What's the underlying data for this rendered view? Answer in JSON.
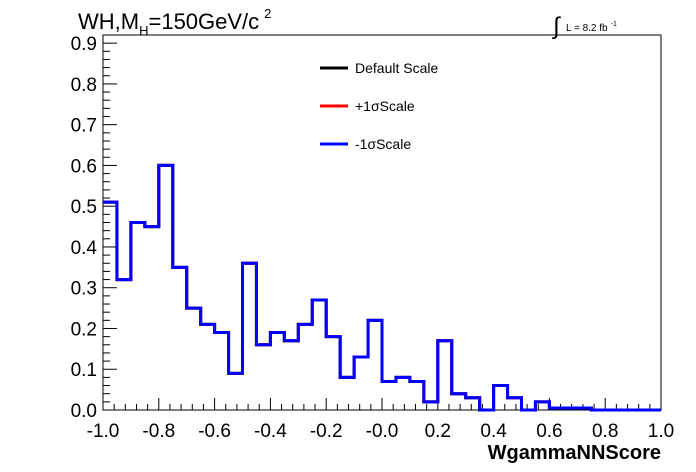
{
  "chart_data": {
    "type": "line",
    "title": {
      "main": "WH,M",
      "subscript": "H",
      "rest": "=150GeV/c",
      "superscript": "2"
    },
    "lumi": {
      "integral": "∫",
      "text": "L = 8.2 fb",
      "superscript": "-1"
    },
    "xlabel": "WgammaNNScore",
    "ylabel": "",
    "xlim": [
      -1.0,
      1.0
    ],
    "ylim": [
      0.0,
      0.92
    ],
    "x_ticks": [
      {
        "value": -1.0,
        "label": "-1.0"
      },
      {
        "value": -0.8,
        "label": "-0.8"
      },
      {
        "value": -0.6,
        "label": "-0.6"
      },
      {
        "value": -0.4,
        "label": "-0.4"
      },
      {
        "value": -0.2,
        "label": "-0.2"
      },
      {
        "value": 0.0,
        "label": "-0.0"
      },
      {
        "value": 0.2,
        "label": "0.2"
      },
      {
        "value": 0.4,
        "label": "0.4"
      },
      {
        "value": 0.6,
        "label": "0.6"
      },
      {
        "value": 0.8,
        "label": "0.8"
      },
      {
        "value": 1.0,
        "label": "1.0"
      }
    ],
    "y_ticks": [
      {
        "value": 0.0,
        "label": "0.0"
      },
      {
        "value": 0.1,
        "label": "0.1"
      },
      {
        "value": 0.2,
        "label": "0.2"
      },
      {
        "value": 0.3,
        "label": "0.3"
      },
      {
        "value": 0.4,
        "label": "0.4"
      },
      {
        "value": 0.5,
        "label": "0.5"
      },
      {
        "value": 0.6,
        "label": "0.6"
      },
      {
        "value": 0.7,
        "label": "0.7"
      },
      {
        "value": 0.8,
        "label": "0.8"
      },
      {
        "value": 0.9,
        "label": "0.9"
      }
    ],
    "bin_edges": [
      -1.0,
      -0.95,
      -0.9,
      -0.85,
      -0.8,
      -0.75,
      -0.7,
      -0.65,
      -0.6,
      -0.55,
      -0.5,
      -0.45,
      -0.4,
      -0.35,
      -0.3,
      -0.25,
      -0.2,
      -0.15,
      -0.1,
      -0.05,
      0.0,
      0.05,
      0.1,
      0.15,
      0.2,
      0.25,
      0.3,
      0.35,
      0.4,
      0.45,
      0.5,
      0.55,
      0.6,
      0.65,
      0.7,
      0.75,
      0.8,
      0.85,
      0.9,
      0.95,
      1.0
    ],
    "series": [
      {
        "name": "Default Scale",
        "color": "#000000",
        "values": [
          0.51,
          0.32,
          0.46,
          0.45,
          0.6,
          0.35,
          0.25,
          0.21,
          0.19,
          0.09,
          0.36,
          0.16,
          0.19,
          0.17,
          0.21,
          0.27,
          0.18,
          0.08,
          0.13,
          0.22,
          0.07,
          0.08,
          0.07,
          0.02,
          0.17,
          0.04,
          0.03,
          0.0,
          0.06,
          0.03,
          0.0,
          0.02,
          0.005,
          0.005,
          0.005,
          0.0,
          0.0,
          0.0,
          0.0,
          0.0
        ]
      },
      {
        "name": "+1σScale",
        "color": "#ff0000",
        "values": [
          0.51,
          0.32,
          0.46,
          0.45,
          0.6,
          0.35,
          0.25,
          0.21,
          0.19,
          0.09,
          0.36,
          0.16,
          0.19,
          0.17,
          0.21,
          0.27,
          0.18,
          0.08,
          0.13,
          0.22,
          0.07,
          0.08,
          0.07,
          0.02,
          0.17,
          0.04,
          0.03,
          0.0,
          0.06,
          0.03,
          0.0,
          0.02,
          0.005,
          0.005,
          0.005,
          0.0,
          0.0,
          0.0,
          0.0,
          0.0
        ]
      },
      {
        "name": "-1σScale",
        "color": "#0000ff",
        "values": [
          0.51,
          0.32,
          0.46,
          0.45,
          0.6,
          0.35,
          0.25,
          0.21,
          0.19,
          0.09,
          0.36,
          0.16,
          0.19,
          0.17,
          0.21,
          0.27,
          0.18,
          0.08,
          0.13,
          0.22,
          0.07,
          0.08,
          0.07,
          0.02,
          0.17,
          0.04,
          0.03,
          0.0,
          0.06,
          0.03,
          0.0,
          0.02,
          0.005,
          0.005,
          0.005,
          0.0,
          0.0,
          0.0,
          0.0,
          0.0
        ]
      }
    ],
    "legend": {
      "placement": "top-center",
      "entries": [
        {
          "label": "Default Scale",
          "color": "#000000"
        },
        {
          "label": "+1σScale",
          "color": "#ff0000"
        },
        {
          "label": "-1σScale",
          "color": "#0000ff"
        }
      ]
    },
    "grid": false
  }
}
